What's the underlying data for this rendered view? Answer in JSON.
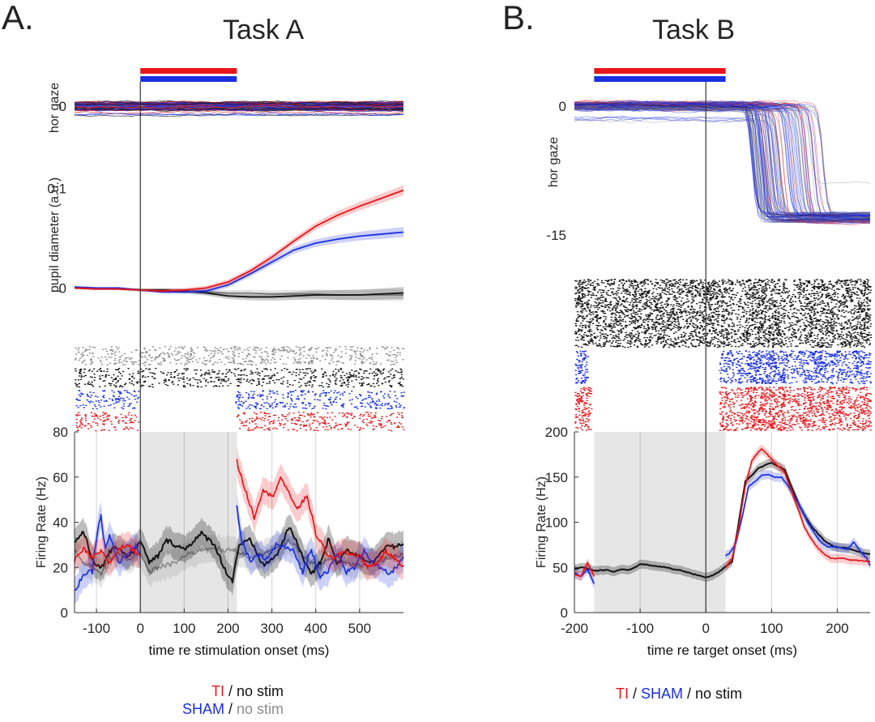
{
  "colors": {
    "ti": "#e8161b",
    "sham": "#1a2fe0",
    "nostim": "#111111",
    "nostim_light": "#8c8c8c",
    "shade": "#e6e6e6",
    "grid": "#d9d9d9"
  },
  "chart_data": [
    {
      "id": "A",
      "panel_letter": "A.",
      "title": "Task A",
      "type": "line",
      "xlabel": "time re stimulation onset (ms)",
      "xlim": [
        -150,
        600
      ],
      "xticks": [
        -100,
        0,
        100,
        200,
        300,
        400,
        500
      ],
      "stim_bars": [
        {
          "name": "TI",
          "color_key": "ti",
          "x": [
            0,
            220
          ]
        },
        {
          "name": "SHAM",
          "color_key": "sham",
          "x": [
            0,
            220
          ]
        }
      ],
      "gaze": {
        "ylabel": "hor gaze",
        "yticks": [
          0
        ],
        "ylim": [
          -3,
          3
        ],
        "description": "overlaid single-trial horizontal gaze traces, all near 0"
      },
      "pupil": {
        "ylabel": "pupil diameter (a.u.)",
        "yticks": [
          0,
          0.1
        ],
        "ylim": [
          -0.02,
          0.11
        ],
        "x": [
          -150,
          -100,
          -50,
          0,
          50,
          100,
          150,
          200,
          250,
          300,
          350,
          400,
          450,
          500,
          550,
          600
        ],
        "series": [
          {
            "name": "TI",
            "color_key": "ti",
            "values": [
              0.0,
              -0.001,
              -0.001,
              -0.002,
              -0.003,
              -0.002,
              0.0,
              0.006,
              0.017,
              0.031,
              0.047,
              0.062,
              0.073,
              0.082,
              0.09,
              0.098
            ]
          },
          {
            "name": "SHAM",
            "color_key": "sham",
            "values": [
              0.001,
              0.0,
              0.0,
              -0.002,
              -0.004,
              -0.004,
              -0.003,
              0.003,
              0.014,
              0.026,
              0.038,
              0.045,
              0.049,
              0.052,
              0.054,
              0.056
            ]
          },
          {
            "name": "no stim (TI)",
            "color_key": "nostim",
            "values": [
              0.0,
              -0.001,
              -0.001,
              -0.002,
              -0.002,
              -0.003,
              -0.005,
              -0.008,
              -0.009,
              -0.009,
              -0.008,
              -0.007,
              -0.007,
              -0.007,
              -0.006,
              -0.005
            ]
          },
          {
            "name": "no stim (SHAM)",
            "color_key": "nostim_light",
            "values": [
              0.0,
              -0.001,
              -0.001,
              -0.002,
              -0.002,
              -0.003,
              -0.004,
              -0.005,
              -0.005,
              -0.006,
              -0.006,
              -0.006,
              -0.007,
              -0.007,
              -0.007,
              -0.007
            ]
          }
        ]
      },
      "raster": {
        "groups": [
          {
            "name": "no stim (SHAM)",
            "color_key": "nostim_light",
            "x_ranges": [
              [
                -150,
                600
              ]
            ]
          },
          {
            "name": "no stim (TI)",
            "color_key": "nostim",
            "x_ranges": [
              [
                -150,
                600
              ]
            ]
          },
          {
            "name": "SHAM",
            "color_key": "sham",
            "x_ranges": [
              [
                -150,
                -5
              ],
              [
                215,
                600
              ]
            ]
          },
          {
            "name": "TI",
            "color_key": "ti",
            "x_ranges": [
              [
                -150,
                -5
              ],
              [
                215,
                600
              ]
            ]
          }
        ]
      },
      "firing": {
        "ylabel": "Firing Rate (Hz)",
        "yticks": [
          0,
          20,
          40,
          60,
          80
        ],
        "ylim": [
          0,
          80
        ],
        "shaded_region": [
          0,
          220
        ],
        "series": [
          {
            "name": "TI",
            "color_key": "ti",
            "segments": [
              {
                "x": [
                  -150,
                  -130,
                  -110,
                  -90,
                  -70,
                  -50,
                  -30,
                  -10,
                  0
                ],
                "values": [
                  23,
                  28,
                  24,
                  27,
                  22,
                  28,
                  30,
                  27,
                  26
                ]
              },
              {
                "x": [
                  220,
                  230,
                  250,
                  260,
                  280,
                  300,
                  320,
                  340,
                  360,
                  380,
                  400,
                  420,
                  440,
                  460,
                  480,
                  500,
                  520,
                  540,
                  560,
                  580,
                  600
                ],
                "values": [
                  67,
                  60,
                  48,
                  42,
                  55,
                  51,
                  60,
                  52,
                  46,
                  52,
                  35,
                  28,
                  23,
                  27,
                  26,
                  25,
                  20,
                  22,
                  27,
                  24,
                  21
                ]
              }
            ]
          },
          {
            "name": "SHAM",
            "color_key": "sham",
            "segments": [
              {
                "x": [
                  -150,
                  -130,
                  -110,
                  -100,
                  -90,
                  -80,
                  -70,
                  -50,
                  -30,
                  -10,
                  0
                ],
                "values": [
                  9,
                  17,
                  18,
                  33,
                  43,
                  28,
                  34,
                  22,
                  26,
                  30,
                  26
                ]
              },
              {
                "x": [
                  220,
                  230,
                  250,
                  270,
                  290,
                  310,
                  330,
                  350,
                  370,
                  390,
                  410,
                  430,
                  450,
                  470,
                  490,
                  510,
                  530,
                  550,
                  570,
                  590,
                  600
                ],
                "values": [
                  47,
                  32,
                  23,
                  25,
                  24,
                  30,
                  29,
                  27,
                  18,
                  28,
                  16,
                  19,
                  26,
                  18,
                  20,
                  28,
                  22,
                  19,
                  17,
                  22,
                  24
                ]
              }
            ]
          },
          {
            "name": "no stim (TI)",
            "color_key": "nostim",
            "values": [
              31,
              36,
              24,
              19,
              27,
              29,
              25,
              28,
              32,
              22,
              25,
              32,
              30,
              28,
              35,
              30,
              20,
              14,
              30,
              32,
              21,
              25,
              38,
              25,
              17,
              22,
              33,
              21,
              28,
              25,
              22,
              30,
              29,
              30
            ],
            "x": [
              -150,
              -130,
              -110,
              -90,
              -70,
              -50,
              -30,
              -10,
              0,
              20,
              40,
              60,
              80,
              100,
              140,
              170,
              190,
              210,
              225,
              250,
              280,
              310,
              340,
              370,
              390,
              410,
              430,
              450,
              470,
              500,
              530,
              560,
              580,
              600
            ]
          },
          {
            "name": "no stim (SHAM)",
            "color_key": "nostim_light",
            "values": [
              28,
              22,
              20,
              17,
              24,
              26,
              24,
              25,
              26,
              18,
              20,
              21,
              22,
              25,
              28,
              29,
              27,
              28,
              27,
              24,
              26,
              28,
              32,
              26,
              22,
              20,
              24,
              23,
              22,
              21,
              22,
              24,
              25,
              26
            ],
            "x": [
              -150,
              -130,
              -110,
              -90,
              -70,
              -50,
              -30,
              -10,
              0,
              20,
              40,
              60,
              80,
              100,
              140,
              170,
              190,
              210,
              225,
              250,
              280,
              310,
              340,
              370,
              390,
              410,
              430,
              450,
              470,
              500,
              530,
              560,
              580,
              600
            ]
          }
        ]
      },
      "legend": [
        [
          {
            "text": "TI",
            "color_key": "ti"
          },
          {
            "text": " / no stim",
            "color_key": "nostim"
          }
        ],
        [
          {
            "text": "SHAM",
            "color_key": "sham"
          },
          {
            "text": " / ",
            "color_key": "nostim"
          },
          {
            "text": "no stim",
            "color_key": "nostim_light"
          }
        ]
      ]
    },
    {
      "id": "B",
      "panel_letter": "B.",
      "title": "Task B",
      "type": "line",
      "xlabel": "time re target onset (ms)",
      "xlim": [
        -200,
        250
      ],
      "xticks": [
        -200,
        -100,
        0,
        100,
        200
      ],
      "stim_bars": [
        {
          "name": "TI",
          "color_key": "ti",
          "x": [
            -170,
            30
          ]
        },
        {
          "name": "SHAM",
          "color_key": "sham",
          "x": [
            -170,
            30
          ]
        }
      ],
      "gaze": {
        "ylabel": "hor gaze",
        "yticks": [
          0,
          -15
        ],
        "ylim": [
          -16,
          2
        ],
        "description": "single-trial horizontal gaze traces: ~0 until saccade at ~70-180 ms, then ~-13",
        "saccade_onset_range": [
          70,
          180
        ],
        "post_saccade_level": -13
      },
      "raster": {
        "groups": [
          {
            "name": "no stim",
            "color_key": "nostim",
            "x_ranges": [
              [
                -200,
                250
              ]
            ]
          },
          {
            "name": "SHAM",
            "color_key": "sham",
            "x_ranges": [
              [
                -200,
                -180
              ],
              [
                20,
                250
              ]
            ]
          },
          {
            "name": "TI",
            "color_key": "ti",
            "x_ranges": [
              [
                -200,
                -175
              ],
              [
                20,
                250
              ]
            ]
          }
        ]
      },
      "firing": {
        "ylabel": "Firing Rate (Hz)",
        "yticks": [
          0,
          50,
          100,
          150,
          200
        ],
        "ylim": [
          0,
          200
        ],
        "shaded_region": [
          -170,
          30
        ],
        "series": [
          {
            "name": "TI",
            "color_key": "ti",
            "segments": [
              {
                "x": [
                  -200,
                  -190,
                  -180,
                  -170
                ],
                "values": [
                  42,
                  40,
                  55,
                  40
                ]
              },
              {
                "x": [
                  30,
                  40,
                  50,
                  60,
                  70,
                  80,
                  85,
                  90,
                  100,
                  110,
                  120,
                  130,
                  140,
                  150,
                  160,
                  170,
                  180,
                  190,
                  200,
                  210,
                  220,
                  230,
                  240,
                  250
                ],
                "values": [
                  50,
                  60,
                  95,
                  140,
                  168,
                  178,
                  181,
                  178,
                  170,
                  162,
                  155,
                  135,
                  115,
                  95,
                  82,
                  72,
                  65,
                  60,
                  60,
                  60,
                  58,
                  58,
                  57,
                  57
                ]
              }
            ]
          },
          {
            "name": "SHAM",
            "color_key": "sham",
            "segments": [
              {
                "x": [
                  -200,
                  -190,
                  -180,
                  -170
                ],
                "values": [
                  44,
                  40,
                  48,
                  32
                ]
              },
              {
                "x": [
                  30,
                  35,
                  45,
                  55,
                  65,
                  75,
                  85,
                  95,
                  105,
                  115,
                  125,
                  135,
                  145,
                  155,
                  165,
                  175,
                  185,
                  195,
                  205,
                  215,
                  225,
                  235,
                  245,
                  250
                ],
                "values": [
                  63,
                  65,
                  75,
                  105,
                  140,
                  145,
                  152,
                  153,
                  150,
                  150,
                  140,
                  128,
                  115,
                  100,
                  88,
                  78,
                  73,
                  73,
                  72,
                  70,
                  78,
                  68,
                  60,
                  52
                ]
              }
            ]
          },
          {
            "name": "no stim",
            "color_key": "nostim",
            "x": [
              -200,
              -190,
              -180,
              -170,
              -160,
              -150,
              -140,
              -130,
              -120,
              -110,
              -100,
              -90,
              -80,
              -70,
              -60,
              -50,
              -40,
              -30,
              -20,
              -10,
              0,
              10,
              20,
              30,
              40,
              50,
              60,
              70,
              80,
              90,
              100,
              110,
              120,
              130,
              140,
              150,
              160,
              170,
              180,
              190,
              200,
              210,
              220,
              230,
              240,
              250
            ],
            "values": [
              48,
              50,
              49,
              46,
              47,
              47,
              45,
              48,
              47,
              49,
              54,
              53,
              52,
              51,
              50,
              48,
              47,
              45,
              43,
              41,
              39,
              41,
              45,
              51,
              56,
              100,
              145,
              152,
              160,
              163,
              166,
              162,
              158,
              140,
              122,
              108,
              96,
              88,
              80,
              75,
              72,
              72,
              70,
              68,
              66,
              65
            ]
          }
        ]
      },
      "legend": [
        [
          {
            "text": "TI",
            "color_key": "ti"
          },
          {
            "text": " / ",
            "color_key": "nostim"
          },
          {
            "text": "SHAM",
            "color_key": "sham"
          },
          {
            "text": " / no stim",
            "color_key": "nostim"
          }
        ]
      ]
    }
  ]
}
